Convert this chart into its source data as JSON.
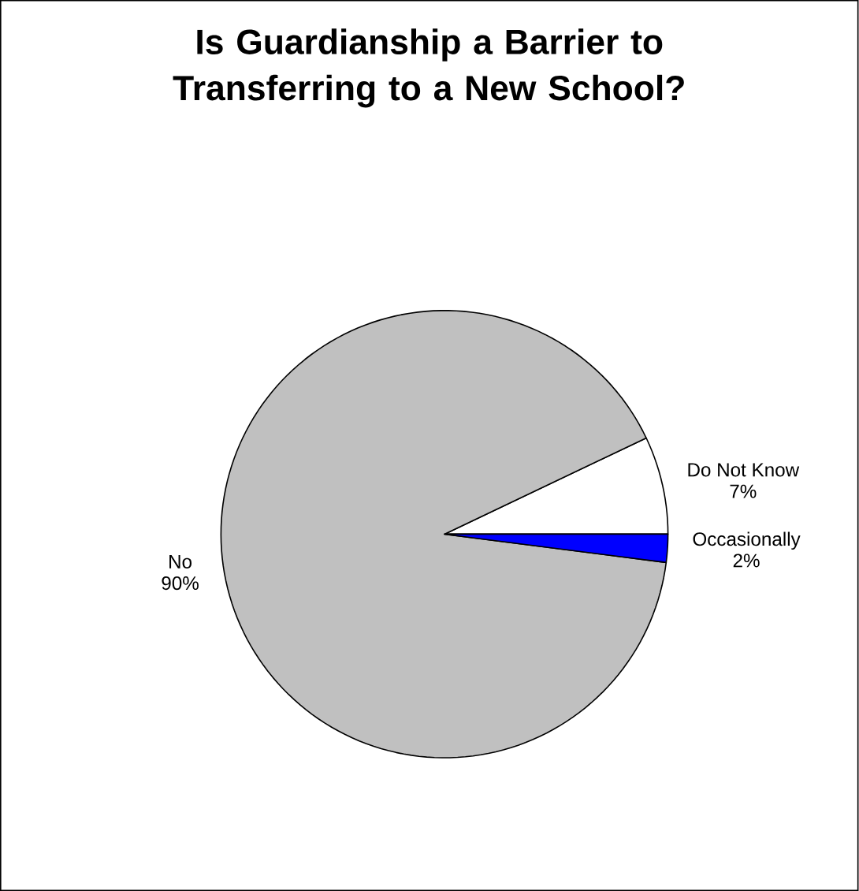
{
  "chart_data": {
    "type": "pie",
    "title": "Is Guardianship a Barrier to Transferring to a New School?",
    "categories": [
      "Do Not Know",
      "No",
      "Occasionally"
    ],
    "values": [
      7,
      90,
      2
    ],
    "colors": [
      "#ffffff",
      "#c0c0c0",
      "#0000ff"
    ],
    "value_labels": [
      "7%",
      "90%",
      "2%"
    ]
  }
}
